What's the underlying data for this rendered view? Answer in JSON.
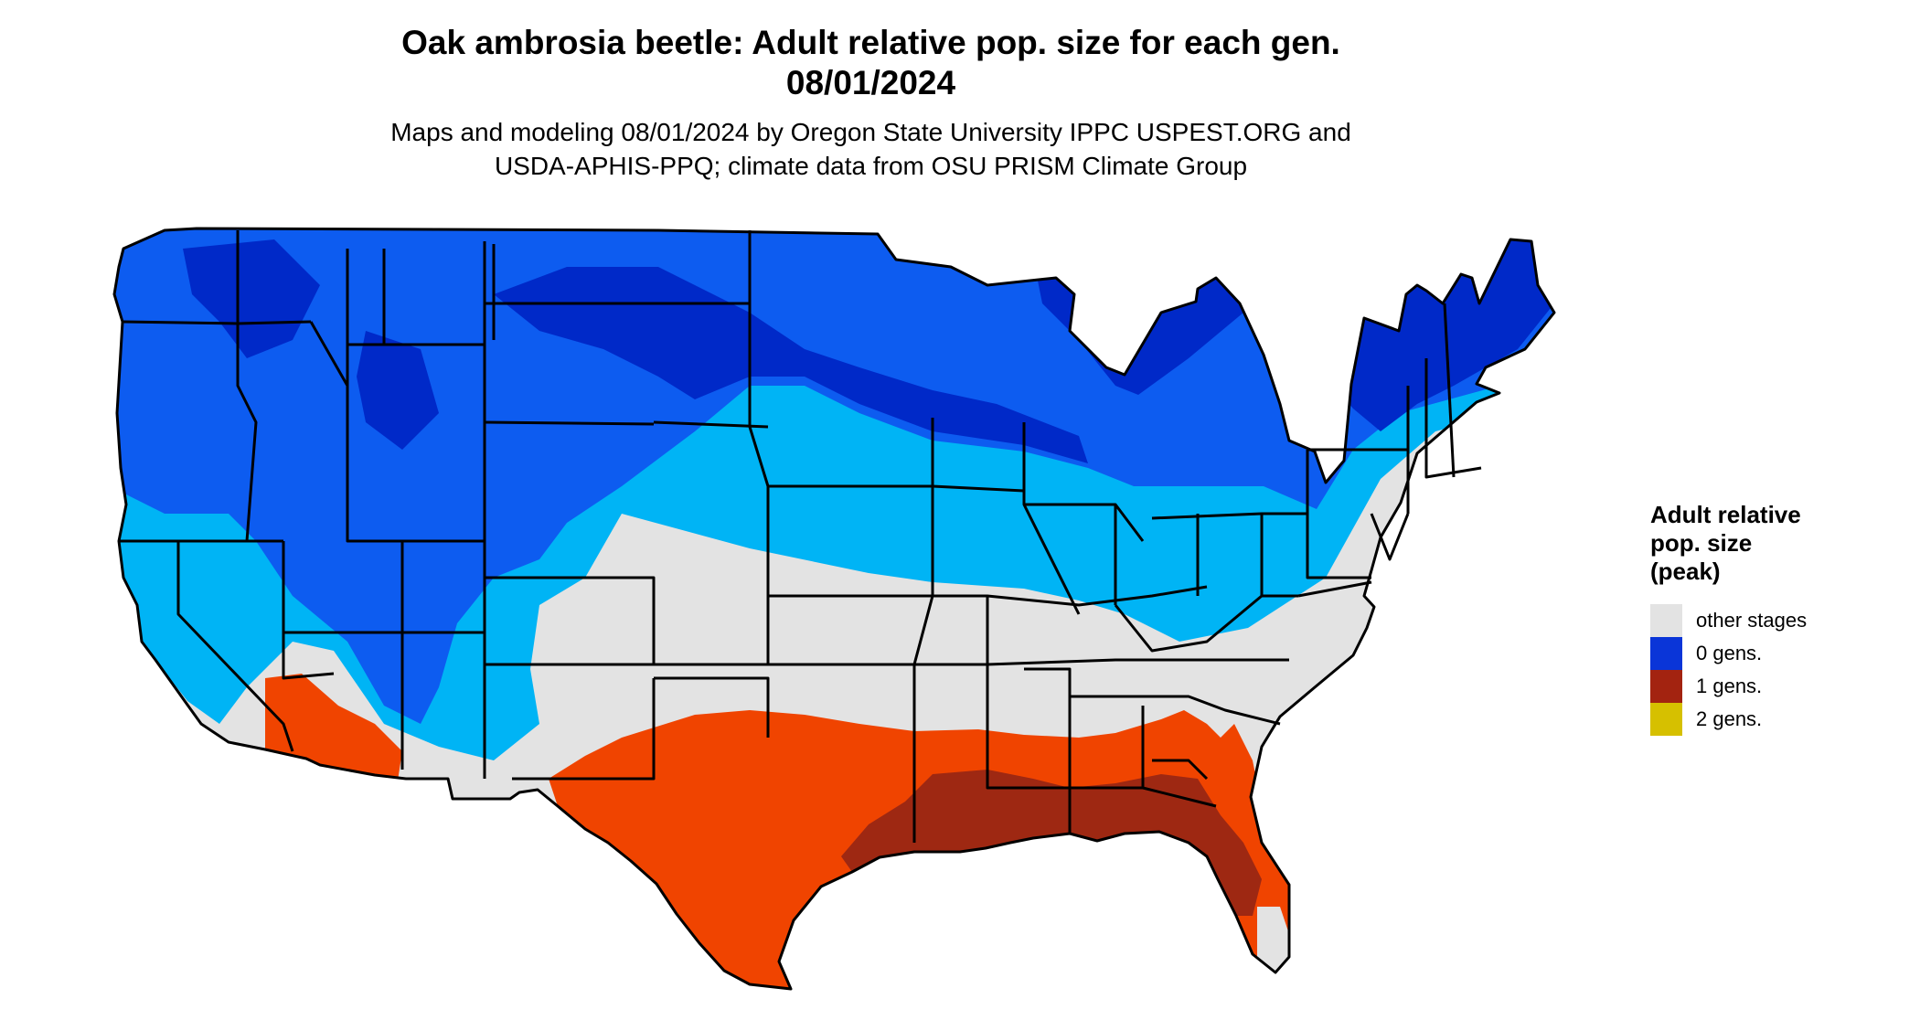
{
  "header": {
    "title_line1": "Oak ambrosia beetle: Adult relative pop. size for each gen.",
    "title_line2": "08/01/2024",
    "subtitle_line1": "Maps and modeling 08/01/2024 by Oregon State University IPPC USPEST.ORG and",
    "subtitle_line2": "USDA-APHIS-PPQ; climate data from OSU PRISM Climate Group"
  },
  "legend": {
    "title_lines": [
      "Adult relative",
      "pop. size",
      "(peak)"
    ],
    "items": [
      {
        "label": "other stages",
        "color": "#e3e3e3"
      },
      {
        "label": "0 gens.",
        "color": "#0a35d8"
      },
      {
        "label": "1 gens.",
        "color": "#a32310"
      },
      {
        "label": "2 gens.",
        "color": "#d6c000"
      }
    ]
  },
  "map": {
    "region": "contiguous United States",
    "colors": {
      "other_stages": "#e3e3e3",
      "zero_gen_dark": "#0029c8",
      "zero_gen_mid": "#0d5cf0",
      "zero_gen_light": "#00b4f5",
      "one_gen_orange": "#f04400",
      "one_gen_dark": "#9e2812",
      "border": "#000000"
    }
  }
}
